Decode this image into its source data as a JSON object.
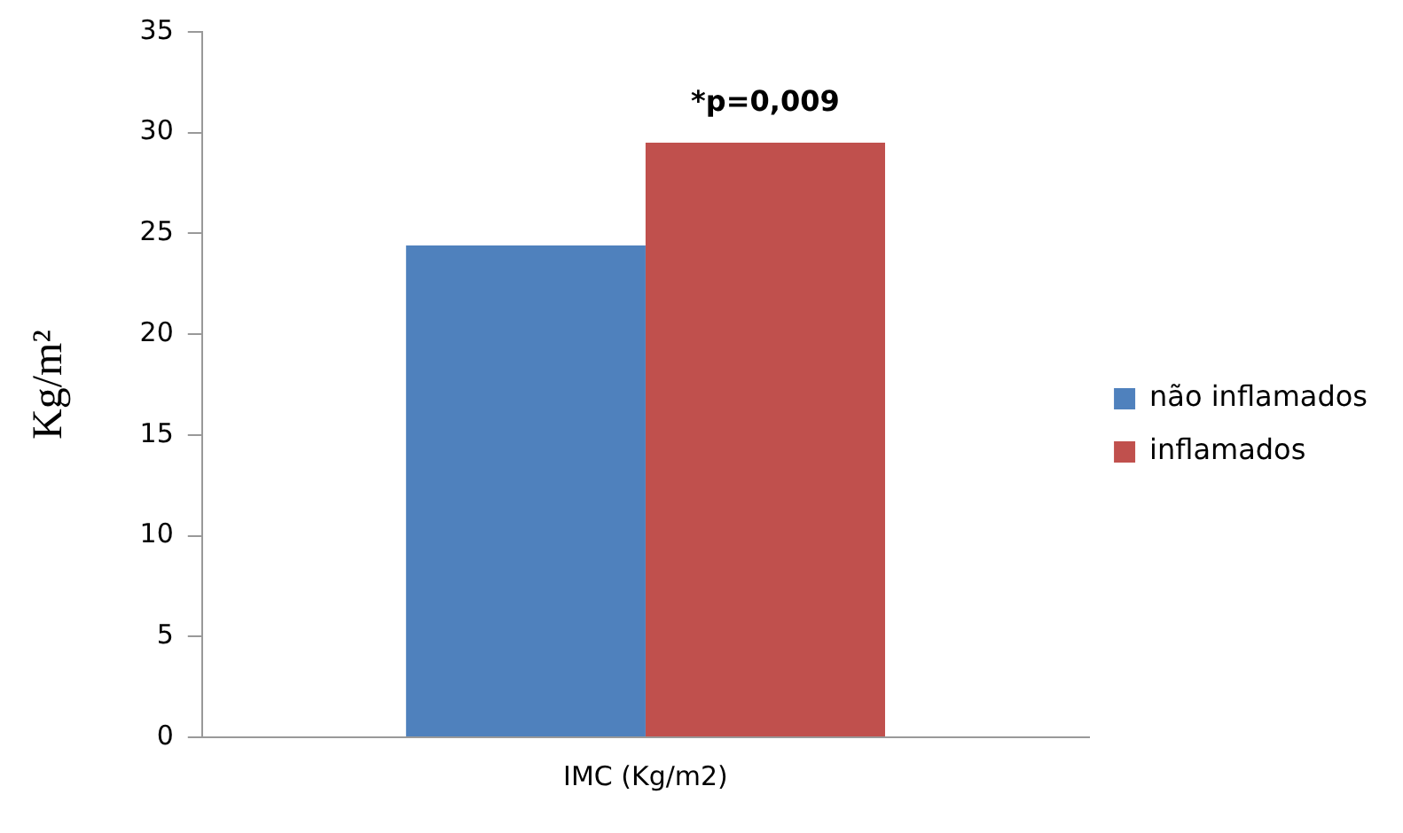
{
  "chart_data": {
    "type": "bar",
    "ylabel": "Kg/m²",
    "categories": [
      "IMC (Kg/m2)"
    ],
    "series": [
      {
        "name": "não inflamados",
        "color": "#4f81bd",
        "values": [
          24.4
        ]
      },
      {
        "name": "inflamados",
        "color": "#c0504d",
        "values": [
          29.5
        ]
      }
    ],
    "ylim": [
      0,
      35
    ],
    "yticks": [
      0,
      5,
      10,
      15,
      20,
      25,
      30,
      35
    ],
    "grid": false,
    "legend": "right",
    "annotations": [
      "*p=0,009"
    ]
  }
}
